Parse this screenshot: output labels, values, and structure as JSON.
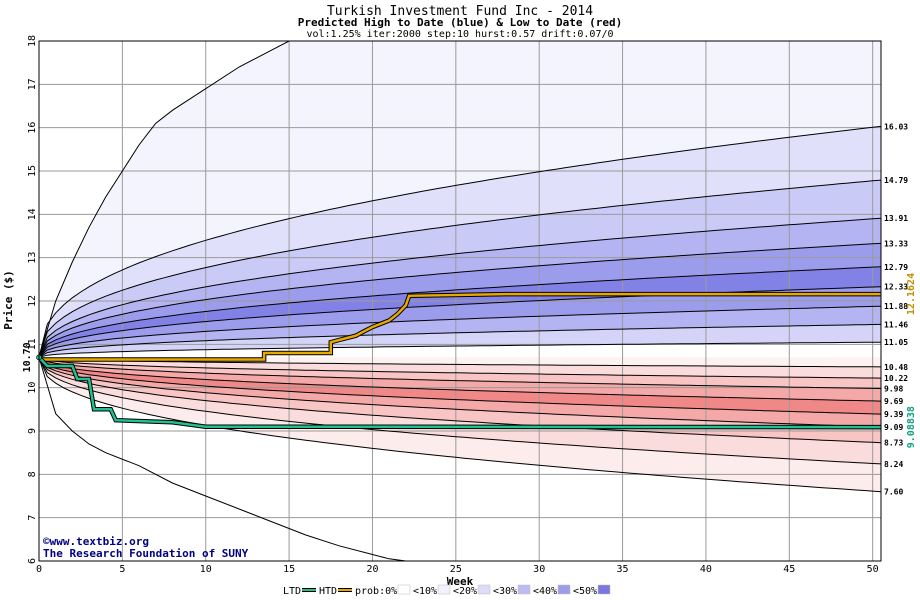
{
  "chart_data": {
    "type": "area",
    "title": "Turkish Investment Fund Inc - 2014",
    "subtitle": "Predicted High to Date (blue) &  Low to Date (red)",
    "params": "vol:1.25% iter:2000 step:10 hurst:0.57 drift:0.07/0",
    "xlabel": "Week",
    "ylabel": "Price ($)",
    "xlim": [
      0,
      50.5
    ],
    "ylim": [
      6,
      18
    ],
    "xticks": [
      "0",
      "5",
      "10",
      "15",
      "20",
      "25",
      "30",
      "35",
      "40",
      "45",
      "50"
    ],
    "yticks": [
      "6",
      "7",
      "8",
      "9",
      "10",
      "11",
      "12",
      "13",
      "14",
      "15",
      "16",
      "17",
      "18"
    ],
    "grid": true,
    "start_price": 10.7,
    "start_label": "10.70",
    "high_band_endpoints": [
      {
        "value": 16.03,
        "label": "16.03"
      },
      {
        "value": 14.79,
        "label": "14.79"
      },
      {
        "value": 13.91,
        "label": "13.91"
      },
      {
        "value": 13.33,
        "label": "13.33"
      },
      {
        "value": 12.79,
        "label": "12.79"
      },
      {
        "value": 12.33,
        "label": "12.33"
      },
      {
        "value": 11.88,
        "label": "11.88"
      },
      {
        "value": 11.46,
        "label": "11.46"
      },
      {
        "value": 11.05,
        "label": "11.05"
      }
    ],
    "low_band_endpoints": [
      {
        "value": 10.48,
        "label": "10.48"
      },
      {
        "value": 10.22,
        "label": "10.22"
      },
      {
        "value": 9.98,
        "label": "9.98"
      },
      {
        "value": 9.69,
        "label": "9.69"
      },
      {
        "value": 9.39,
        "label": "9.39"
      },
      {
        "value": 9.09,
        "label": "9.09"
      },
      {
        "value": 8.73,
        "label": "8.73"
      },
      {
        "value": 8.24,
        "label": "8.24"
      },
      {
        "value": 7.6,
        "label": "7.60"
      }
    ],
    "envelope_high": [
      [
        0,
        10.7
      ],
      [
        1,
        12.0
      ],
      [
        2,
        12.9
      ],
      [
        3,
        13.7
      ],
      [
        4,
        14.4
      ],
      [
        5,
        15.0
      ],
      [
        6,
        15.6
      ],
      [
        7,
        16.1
      ],
      [
        8,
        16.4
      ],
      [
        10,
        16.9
      ],
      [
        12,
        17.4
      ],
      [
        14,
        17.8
      ],
      [
        15,
        18.0
      ]
    ],
    "envelope_low": [
      [
        0,
        10.7
      ],
      [
        1,
        9.4
      ],
      [
        2,
        9.0
      ],
      [
        3,
        8.7
      ],
      [
        4,
        8.5
      ],
      [
        6,
        8.2
      ],
      [
        8,
        7.8
      ],
      [
        10,
        7.5
      ],
      [
        12,
        7.2
      ],
      [
        14,
        6.9
      ],
      [
        16,
        6.6
      ],
      [
        18,
        6.35
      ],
      [
        20,
        6.15
      ],
      [
        21,
        6.05
      ],
      [
        22,
        6.0
      ]
    ],
    "series": [
      {
        "name": "HTD",
        "color": "#e8a800",
        "final_value": 12.1624,
        "final_label": "12.1624",
        "points": [
          [
            0,
            10.65
          ],
          [
            13.5,
            10.65
          ],
          [
            13.5,
            10.8
          ],
          [
            17.5,
            10.8
          ],
          [
            17.5,
            11.05
          ],
          [
            18,
            11.1
          ],
          [
            19,
            11.2
          ],
          [
            19.5,
            11.3
          ],
          [
            20,
            11.4
          ],
          [
            21,
            11.55
          ],
          [
            21.5,
            11.7
          ],
          [
            22,
            11.9
          ],
          [
            22.2,
            12.12
          ],
          [
            28,
            12.16
          ],
          [
            50.5,
            12.16
          ]
        ]
      },
      {
        "name": "LTD",
        "color": "#20c090",
        "final_value": 9.08838,
        "final_label": "9.08838",
        "points": [
          [
            0,
            10.7
          ],
          [
            0.5,
            10.5
          ],
          [
            2,
            10.5
          ],
          [
            2.3,
            10.2
          ],
          [
            3,
            10.2
          ],
          [
            3.3,
            9.5
          ],
          [
            4.3,
            9.5
          ],
          [
            4.6,
            9.25
          ],
          [
            8,
            9.2
          ],
          [
            10,
            9.1
          ],
          [
            50.5,
            9.09
          ]
        ]
      }
    ],
    "legend": {
      "placement": "bottom",
      "entries": [
        {
          "label": "LTD",
          "color": "#20c090"
        },
        {
          "label": "HTD",
          "color": "#e8a800"
        },
        {
          "label": "prob:0%",
          "color": "#ffffff"
        },
        {
          "label": "<10%",
          "color": "#f2f2ff"
        },
        {
          "label": "<20%",
          "color": "#dcdcfa"
        },
        {
          "label": "<30%",
          "color": "#bcbcf2"
        },
        {
          "label": "<40%",
          "color": "#9c9cea"
        },
        {
          "label": "<50%",
          "color": "#7878e0"
        }
      ]
    },
    "colors": {
      "high_bands": [
        "#f4f4ff",
        "#e0e0fb",
        "#cacaf6",
        "#b4b4f2",
        "#9c9cec",
        "#8282e6",
        "#9c9cec",
        "#b4b4f2",
        "#d4d4f8"
      ],
      "low_bands": [
        "#fdf2f2",
        "#fbdcdc",
        "#f8c4c4",
        "#f5a8a8",
        "#f08888",
        "#f5a8a8",
        "#f8c4c4",
        "#fbdcdc",
        "#fdecec"
      ]
    }
  },
  "credit": {
    "line1": "©www.textbiz.org",
    "line2": "The Research Foundation of SUNY"
  }
}
